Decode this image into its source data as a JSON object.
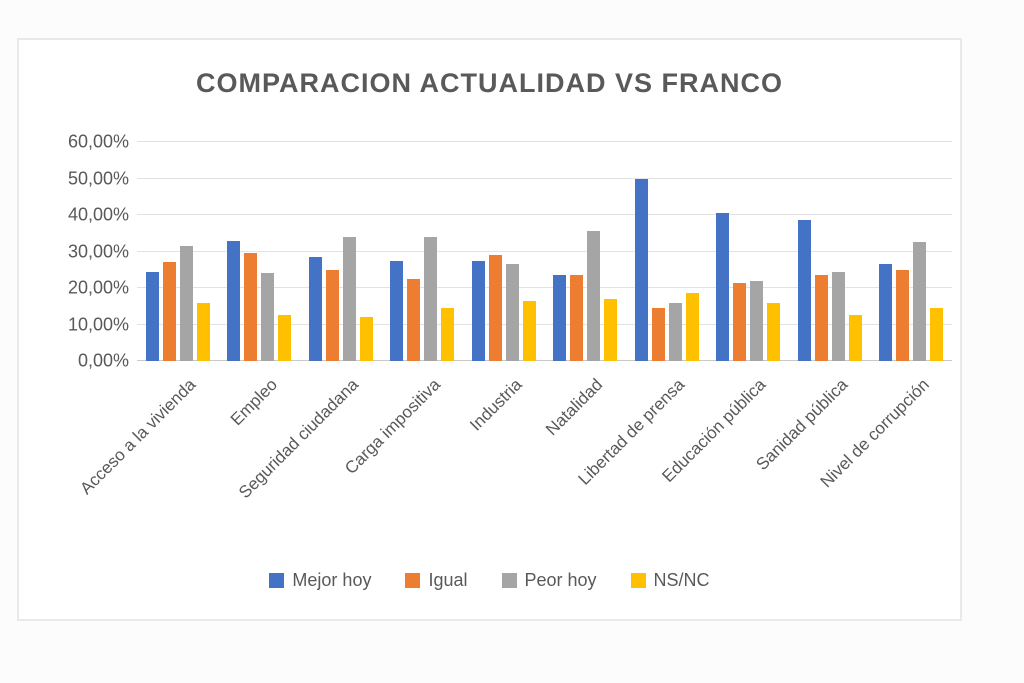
{
  "chart_data": {
    "type": "bar",
    "title": "COMPARACION ACTUALIDAD VS FRANCO",
    "xlabel": "",
    "ylabel": "",
    "ylim": [
      0,
      60
    ],
    "grid": true,
    "legend_position": "bottom",
    "value_format": "percent-spanish",
    "yticks": [
      {
        "value": 0,
        "label": "0,00%"
      },
      {
        "value": 10,
        "label": "10,00%"
      },
      {
        "value": 20,
        "label": "20,00%"
      },
      {
        "value": 30,
        "label": "30,00%"
      },
      {
        "value": 40,
        "label": "40,00%"
      },
      {
        "value": 50,
        "label": "50,00%"
      },
      {
        "value": 60,
        "label": "60,00%"
      }
    ],
    "categories": [
      "Acceso a la vivienda",
      "Empleo",
      "Seguridad ciudadana",
      "Carga impositiva",
      "Industria",
      "Natalidad",
      "Libertad de prensa",
      "Educación pública",
      "Sanidad pública",
      "Nivel de corrupción"
    ],
    "series": [
      {
        "name": "Mejor hoy",
        "color": "#4472C4",
        "values": [
          24.5,
          33.0,
          28.5,
          27.5,
          27.5,
          23.5,
          50.0,
          40.5,
          38.5,
          26.5
        ]
      },
      {
        "name": "Igual",
        "color": "#ED7D31",
        "values": [
          27.0,
          29.5,
          25.0,
          22.5,
          29.0,
          23.5,
          14.5,
          21.5,
          23.5,
          25.0
        ]
      },
      {
        "name": "Peor hoy",
        "color": "#A5A5A5",
        "values": [
          31.5,
          24.0,
          34.0,
          34.0,
          26.5,
          35.5,
          16.0,
          22.0,
          24.5,
          32.5
        ]
      },
      {
        "name": "NS/NC",
        "color": "#FFC000",
        "values": [
          16.0,
          12.5,
          12.0,
          14.5,
          16.5,
          17.0,
          18.5,
          16.0,
          12.5,
          14.5
        ]
      }
    ]
  },
  "colors": {
    "title_text": "#595959",
    "axis_text": "#595959",
    "gridline": "#e2e2e2",
    "frame_border": "#e9e9e9",
    "background": "#ffffff"
  }
}
